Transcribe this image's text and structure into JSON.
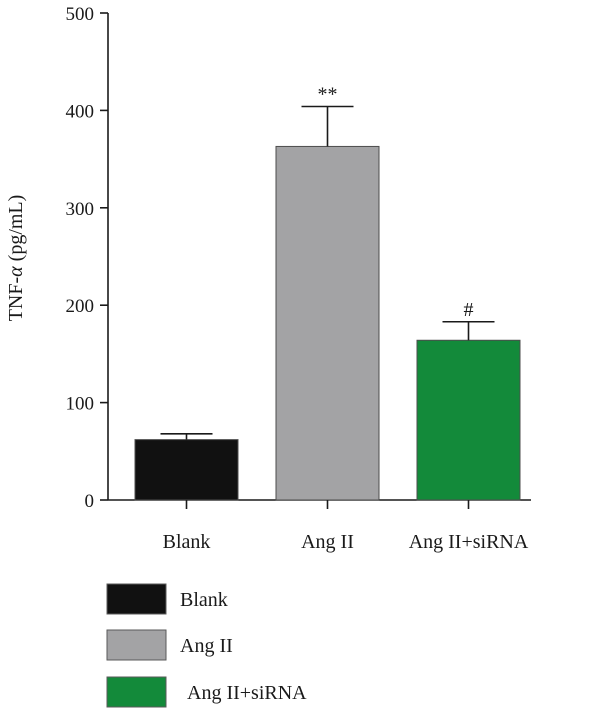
{
  "chart_data": {
    "type": "bar",
    "ylabel_prefix": "TNF-",
    "ylabel_symbol": "α",
    "ylabel_suffix": " (pg/mL)",
    "ylim": [
      0,
      500
    ],
    "yticks": [
      "0",
      "100",
      "200",
      "300",
      "400",
      "500"
    ],
    "categories": [
      "Blank",
      "Ang II",
      "Ang II+siRNA"
    ],
    "values": [
      62,
      363,
      164
    ],
    "errors": [
      6,
      41,
      19
    ],
    "annotations": [
      "",
      "**",
      "#"
    ],
    "colors": [
      "#111111",
      "#a3a3a5",
      "#138a3a"
    ],
    "legend": [
      {
        "label": "Blank",
        "color": "#111111"
      },
      {
        "label": "Ang II",
        "color": "#a3a3a5"
      },
      {
        "label": "Ang II+siRNA",
        "color": "#138a3a"
      }
    ]
  }
}
